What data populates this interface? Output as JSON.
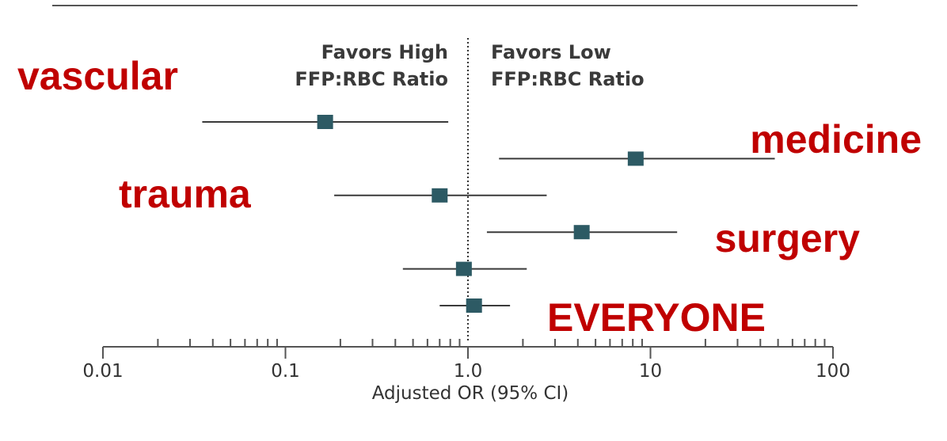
{
  "chart_data": {
    "type": "forest",
    "xlabel": "Adjusted OR (95% CI)",
    "x_scale": "log",
    "xlim": [
      0.01,
      100
    ],
    "x_ticks": [
      "0.01",
      "0.1",
      "1.0",
      "10",
      "100"
    ],
    "reference_value": 1.0,
    "favors_left": [
      "Favors High",
      "FFP:RBC Ratio"
    ],
    "favors_right": [
      "Favors Low",
      "FFP:RBC Ratio"
    ],
    "rows": [
      {
        "label": "vascular",
        "or": 0.165,
        "lo": 0.035,
        "hi": 0.78
      },
      {
        "label": "medicine",
        "or": 8.3,
        "lo": 1.48,
        "hi": 48.0
      },
      {
        "label": "trauma",
        "or": 0.7,
        "lo": 0.185,
        "hi": 2.7
      },
      {
        "label": "surgery",
        "or": 4.2,
        "lo": 1.27,
        "hi": 14.0
      },
      {
        "label": "",
        "or": 0.95,
        "lo": 0.44,
        "hi": 2.1
      },
      {
        "label": "EVERYONE",
        "or": 1.08,
        "lo": 0.7,
        "hi": 1.7
      }
    ]
  },
  "colors": {
    "marker": "#2d5a64",
    "ci_line": "#3a3a3a",
    "axis": "#555555",
    "annotation": "#c00000",
    "rule": "#555555"
  }
}
